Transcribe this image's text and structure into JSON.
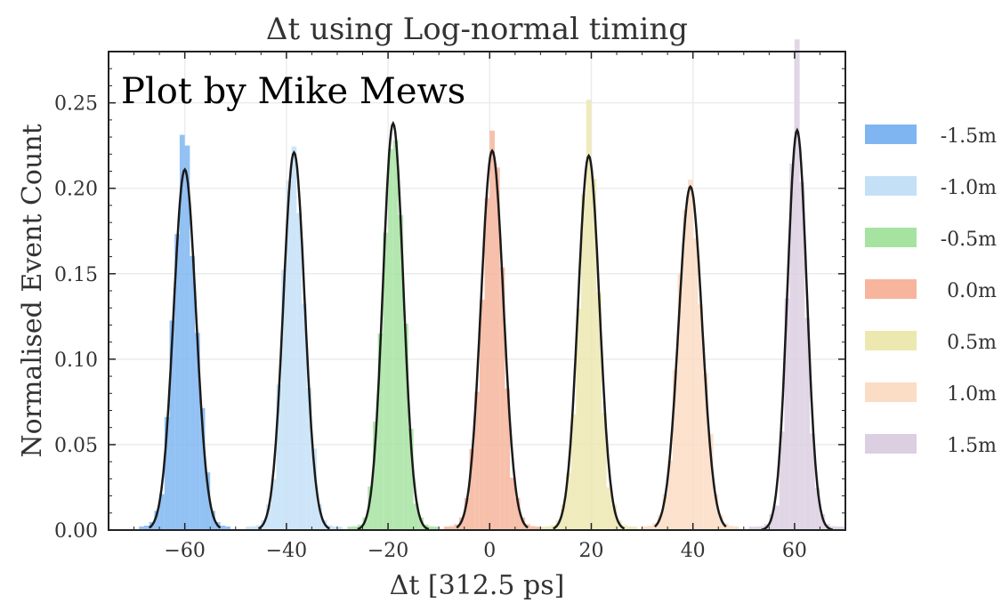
{
  "chart_data": {
    "type": "histogram",
    "title": "Δt using Log-normal timing",
    "xlabel": "Δt [312.5 ps]",
    "ylabel": "Normalised Event Count",
    "xlim": [
      -75,
      70
    ],
    "ylim": [
      0,
      0.28
    ],
    "xticks": [
      "−60",
      "−40",
      "−20",
      "0",
      "20",
      "40",
      "60"
    ],
    "xtick_values": [
      -60,
      -40,
      -20,
      0,
      20,
      40,
      60
    ],
    "yticks": [
      "0.00",
      "0.05",
      "0.10",
      "0.15",
      "0.20",
      "0.25"
    ],
    "ytick_values": [
      0,
      0.05,
      0.1,
      0.15,
      0.2,
      0.25
    ],
    "grid": true,
    "legend_position": "right",
    "fit_color": "#1a1a1a",
    "series": [
      {
        "name": "-1.5m",
        "color": "#7fb6f2",
        "center": -60,
        "fit_peak": 0.211,
        "fit_sigma": 2.2,
        "hist_max": 0.237
      },
      {
        "name": "-1.0m",
        "color": "#c4e0f7",
        "center": -38.5,
        "fit_peak": 0.221,
        "fit_sigma": 2.1,
        "hist_max": 0.229
      },
      {
        "name": "-0.5m",
        "color": "#a6e3a1",
        "center": -19,
        "fit_peak": 0.238,
        "fit_sigma": 2.0,
        "hist_max": 0.235
      },
      {
        "name": "0.0m",
        "color": "#f6b59c",
        "center": 0.5,
        "fit_peak": 0.222,
        "fit_sigma": 2.2,
        "hist_max": 0.228
      },
      {
        "name": "0.5m",
        "color": "#ece8b0",
        "center": 19.5,
        "fit_peak": 0.219,
        "fit_sigma": 2.1,
        "hist_max": 0.241
      },
      {
        "name": "1.0m",
        "color": "#fbdcc4",
        "center": 39.5,
        "fit_peak": 0.201,
        "fit_sigma": 2.3,
        "hist_max": 0.212
      },
      {
        "name": "1.5m",
        "color": "#dccfe2",
        "center": 60.5,
        "fit_peak": 0.234,
        "fit_sigma": 1.9,
        "hist_max": 0.277
      }
    ]
  },
  "watermark": "Plot by Mike Mews"
}
